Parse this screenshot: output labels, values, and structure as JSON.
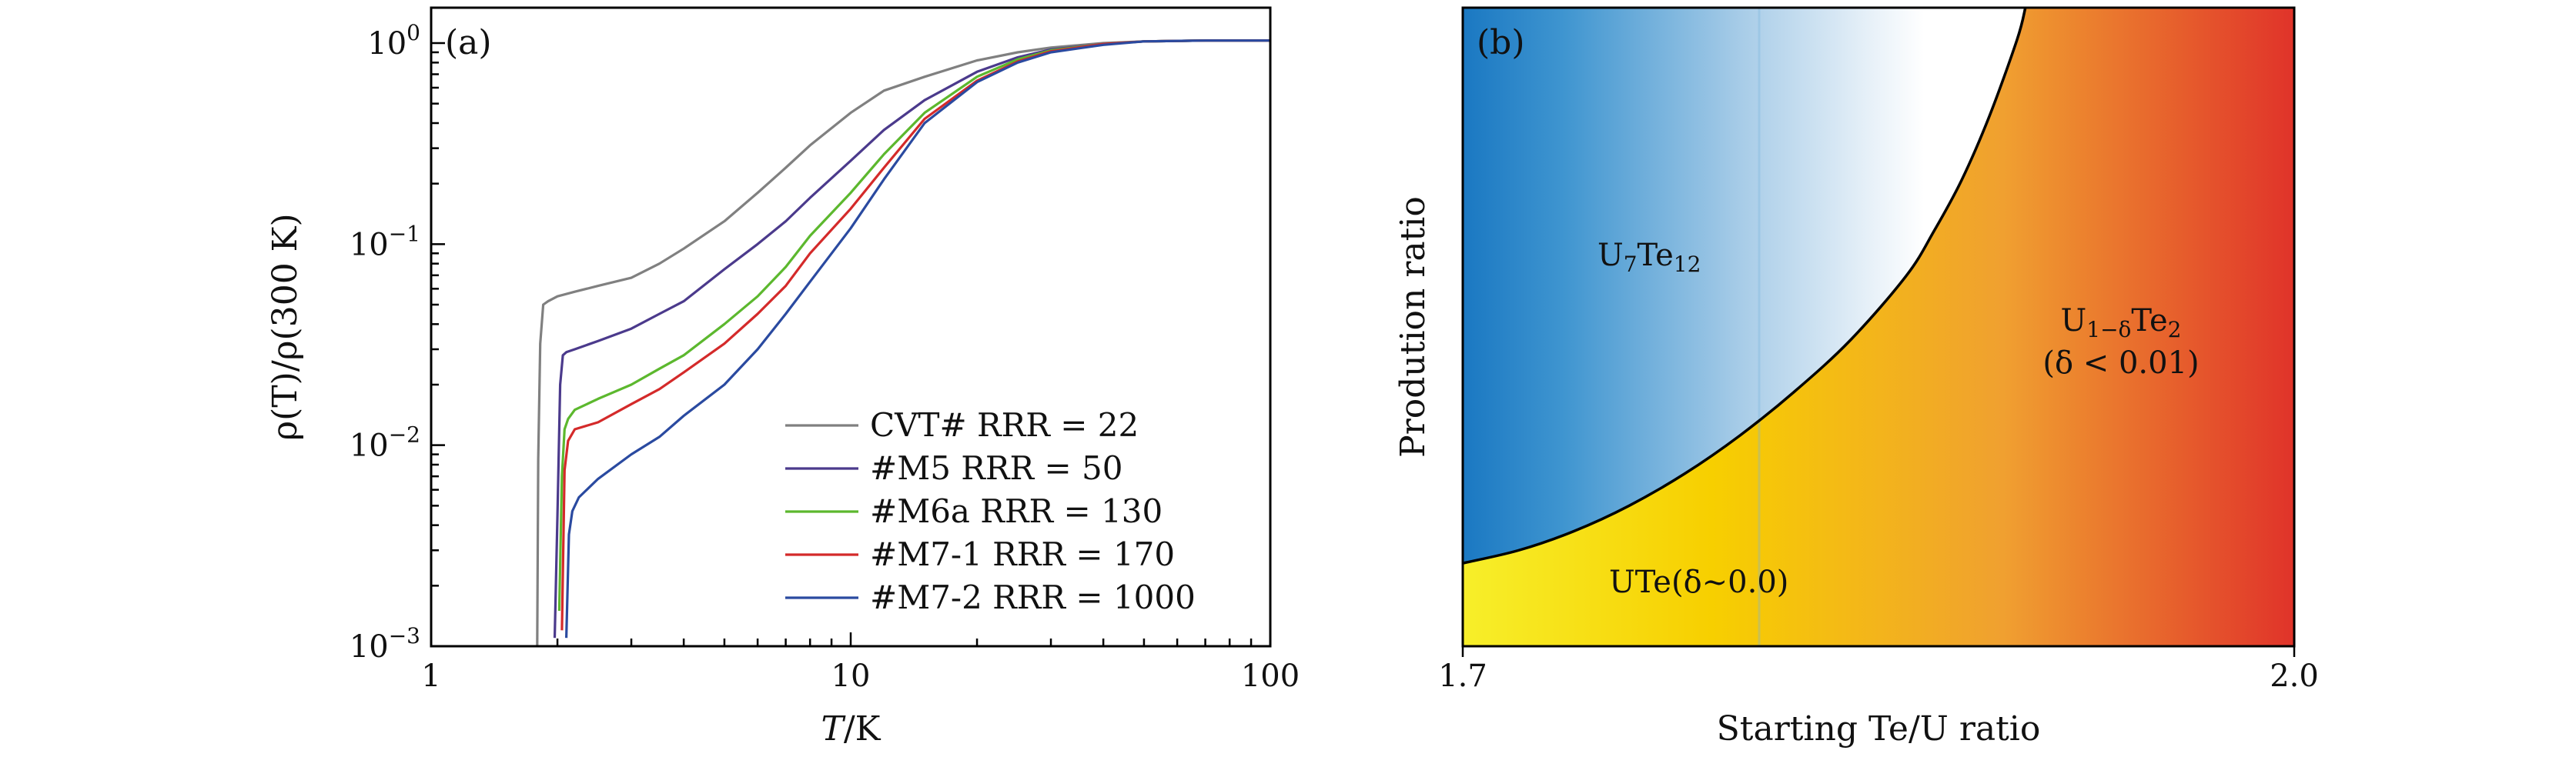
{
  "chart_data": [
    {
      "panel_label": "(a)",
      "type": "line",
      "xscale": "log",
      "yscale": "log",
      "xlim": [
        1,
        100
      ],
      "ylim": [
        0.001,
        1.5
      ],
      "xlabel": "T/K",
      "ylabel": "ρ(T)/ρ(300 K)",
      "x_ticks": [
        {
          "value": 1,
          "label": "1"
        },
        {
          "value": 10,
          "label": "10"
        },
        {
          "value": 100,
          "label": "100"
        }
      ],
      "y_ticks": [
        {
          "value": 0.001,
          "base": "10",
          "exp": "−3"
        },
        {
          "value": 0.01,
          "base": "10",
          "exp": "−2"
        },
        {
          "value": 0.1,
          "base": "10",
          "exp": "−1"
        },
        {
          "value": 1,
          "base": "10",
          "exp": "0"
        }
      ],
      "legend_position": "bottom-right",
      "series": [
        {
          "name": "CVT# RRR = 22",
          "color": "#808080",
          "x": [
            1.79,
            1.8,
            1.82,
            1.85,
            1.9,
            2.0,
            2.2,
            2.5,
            3.0,
            3.5,
            4.0,
            5.0,
            6.0,
            7.0,
            8.0,
            10.0,
            12.0,
            15.0,
            20.0,
            25.0,
            30.0,
            40.0,
            50.0,
            70.0,
            100.0
          ],
          "y": [
            0.001,
            0.0085,
            0.032,
            0.05,
            0.052,
            0.055,
            0.058,
            0.062,
            0.068,
            0.08,
            0.095,
            0.13,
            0.18,
            0.24,
            0.31,
            0.45,
            0.58,
            0.68,
            0.82,
            0.9,
            0.95,
            1.0,
            1.02,
            1.03,
            1.03
          ]
        },
        {
          "name": "#M5 RRR = 50",
          "color": "#4b3a8c",
          "x": [
            1.97,
            2.0,
            2.03,
            2.06,
            2.1,
            2.2,
            2.5,
            3.0,
            3.5,
            4.0,
            5.0,
            6.0,
            7.0,
            8.0,
            10.0,
            12.0,
            15.0,
            20.0,
            25.0,
            30.0,
            40.0,
            50.0,
            70.0,
            100.0
          ],
          "y": [
            0.0011,
            0.0045,
            0.02,
            0.028,
            0.029,
            0.03,
            0.033,
            0.038,
            0.045,
            0.052,
            0.075,
            0.1,
            0.13,
            0.17,
            0.26,
            0.37,
            0.52,
            0.72,
            0.85,
            0.93,
            0.99,
            1.02,
            1.03,
            1.03
          ]
        },
        {
          "name": "#M6a RRR = 130",
          "color": "#5cb82e",
          "x": [
            2.02,
            2.05,
            2.08,
            2.12,
            2.2,
            2.5,
            3.0,
            3.5,
            4.0,
            5.0,
            6.0,
            7.0,
            8.0,
            10.0,
            12.0,
            15.0,
            20.0,
            25.0,
            30.0,
            40.0,
            50.0,
            70.0,
            100.0
          ],
          "y": [
            0.0015,
            0.007,
            0.012,
            0.0135,
            0.015,
            0.017,
            0.02,
            0.024,
            0.028,
            0.04,
            0.055,
            0.077,
            0.11,
            0.18,
            0.28,
            0.45,
            0.68,
            0.83,
            0.92,
            0.99,
            1.02,
            1.03,
            1.03
          ]
        },
        {
          "name": "#M7-1 RRR = 170",
          "color": "#d42a2a",
          "x": [
            2.05,
            2.08,
            2.12,
            2.2,
            2.5,
            3.0,
            3.5,
            4.0,
            5.0,
            6.0,
            7.0,
            8.0,
            10.0,
            12.0,
            15.0,
            20.0,
            25.0,
            30.0,
            40.0,
            50.0,
            70.0,
            100.0
          ],
          "y": [
            0.0012,
            0.0075,
            0.0105,
            0.012,
            0.013,
            0.016,
            0.019,
            0.023,
            0.032,
            0.045,
            0.062,
            0.09,
            0.15,
            0.24,
            0.42,
            0.65,
            0.81,
            0.91,
            0.99,
            1.02,
            1.03,
            1.03
          ]
        },
        {
          "name": "#M7-2 RRR = 1000",
          "color": "#2a4aa0",
          "x": [
            2.1,
            2.13,
            2.17,
            2.25,
            2.5,
            3.0,
            3.5,
            4.0,
            5.0,
            6.0,
            7.0,
            8.0,
            10.0,
            12.0,
            15.0,
            20.0,
            25.0,
            30.0,
            40.0,
            50.0,
            70.0,
            100.0
          ],
          "y": [
            0.0011,
            0.0036,
            0.0047,
            0.0055,
            0.0068,
            0.009,
            0.011,
            0.014,
            0.02,
            0.03,
            0.045,
            0.065,
            0.12,
            0.21,
            0.4,
            0.64,
            0.8,
            0.9,
            0.98,
            1.02,
            1.03,
            1.03
          ]
        }
      ]
    },
    {
      "panel_label": "(b)",
      "type": "area",
      "xlim": [
        1.7,
        2.0
      ],
      "ylim": [
        0,
        1
      ],
      "xlabel": "Starting Te/U ratio",
      "ylabel": "Prodution ratio",
      "x_ticks": [
        {
          "value": 1.7,
          "label": "1.7"
        },
        {
          "value": 2.0,
          "label": "2.0"
        }
      ],
      "boundary": {
        "x": [
          1.7,
          1.72,
          1.74,
          1.76,
          1.78,
          1.8,
          1.82,
          1.84,
          1.86,
          1.87,
          1.88,
          1.89,
          1.9,
          1.903
        ],
        "y": [
          0.13,
          0.15,
          0.18,
          0.22,
          0.27,
          0.33,
          0.4,
          0.48,
          0.58,
          0.65,
          0.73,
          0.83,
          0.95,
          1.0
        ]
      },
      "regions": [
        {
          "name": "U7Te12",
          "main": "U",
          "sub1": "7",
          "mid": "Te",
          "sub2": "12"
        },
        {
          "name": "U1−δTe2",
          "main": "U",
          "sub1": "1−δ",
          "mid": "Te",
          "sub2": "2",
          "line2": "(δ < 0.01)"
        },
        {
          "name": "UTe(δ∼0.0)",
          "text": "UTe(δ∼0.0)"
        }
      ],
      "colors": {
        "blue_dark": "#1a78c2",
        "blue_light": "#ffffff",
        "yellow": "#f7ef2a",
        "orange": "#f0a030",
        "red": "#e0332a"
      }
    }
  ]
}
